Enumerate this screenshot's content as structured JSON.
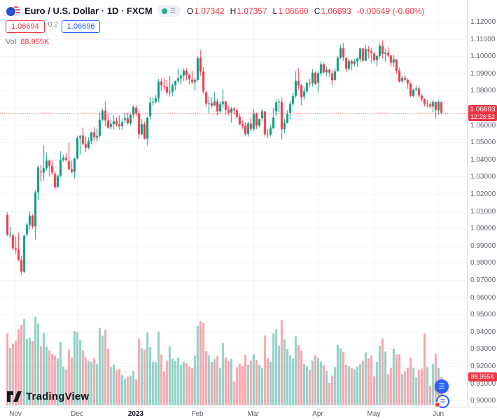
{
  "header": {
    "symbol_title": "Euro / U.S. Dollar · 1D · FXCM",
    "ohlc": {
      "o_label": "O",
      "o": "1.07342",
      "h_label": "H",
      "h": "1.07357",
      "l_label": "L",
      "l": "1.06660",
      "c_label": "C",
      "c": "1.06693",
      "change": "-0.00649 (-0.60%)"
    },
    "bid": "1.06694",
    "spread": "0.2",
    "ask": "1.06696",
    "vol_label": "Vol",
    "vol_value": "88.955K"
  },
  "price_scale": {
    "labels": [
      "1.12000",
      "1.11000",
      "1.10000",
      "1.09000",
      "1.08000",
      "1.07000",
      "1.06000",
      "1.05000",
      "1.04000",
      "1.03000",
      "1.02000",
      "1.01000",
      "1.00000",
      "0.99000",
      "0.98000",
      "0.97000",
      "0.96000",
      "0.95000",
      "0.94000",
      "0.93000",
      "0.92000",
      "0.91000",
      "0.90000"
    ],
    "last_price_label": "1.06693",
    "countdown": "12:28:52",
    "volume_badge": "88.955K"
  },
  "time_scale": {
    "labels": [
      {
        "text": "Nov",
        "index": 3
      },
      {
        "text": "Dec",
        "index": 25
      },
      {
        "text": "2023",
        "index": 46,
        "strong": true
      },
      {
        "text": "Feb",
        "index": 68
      },
      {
        "text": "Mar",
        "index": 88
      },
      {
        "text": "Apr",
        "index": 111
      },
      {
        "text": "May",
        "index": 131
      },
      {
        "text": "Jun",
        "index": 154
      }
    ]
  },
  "footer": {
    "logo_text": "TradingView"
  },
  "colors": {
    "up": "#089981",
    "down": "#f23645",
    "accent_blue": "#2962ff",
    "grid": "#f0f3fa",
    "axis_border": "#d8dce4",
    "axis_text": "#5d606b",
    "title_text": "#131722",
    "vol_up": "rgba(8,153,129,0.45)",
    "vol_down": "rgba(242,54,69,0.45)"
  },
  "chart_data": {
    "type": "candlestick",
    "title": "Euro / U.S. Dollar",
    "symbol": "EURUSD",
    "exchange": "FXCM",
    "interval": "1D",
    "x_range": "late Oct 2022 – early Jun 2023",
    "price_axis_range": [
      0.9,
      1.12
    ],
    "grid": true,
    "last_price": 1.06693,
    "volume_unit": "K",
    "candles_format": "[open, high, low, close, volumeK]",
    "candles": [
      [
        1.0079,
        1.0094,
        0.9955,
        0.9963,
        228
      ],
      [
        0.9963,
        1.001,
        0.9945,
        0.9965,
        182
      ],
      [
        0.996,
        0.9967,
        0.9872,
        0.9884,
        196
      ],
      [
        0.9884,
        0.9953,
        0.9853,
        0.9876,
        205
      ],
      [
        0.9876,
        0.9976,
        0.981,
        0.9817,
        241
      ],
      [
        0.9817,
        0.984,
        0.973,
        0.9749,
        256
      ],
      [
        0.9749,
        0.9964,
        0.9741,
        0.9957,
        274
      ],
      [
        0.9965,
        1.003,
        0.9951,
        1.002,
        211
      ],
      [
        1.002,
        1.0096,
        0.9994,
        1.0074,
        214
      ],
      [
        1.0074,
        1.0084,
        0.9998,
        1.0011,
        204
      ],
      [
        1.0011,
        1.0222,
        0.9936,
        1.0209,
        281
      ],
      [
        1.0209,
        1.0364,
        1.0163,
        1.0354,
        259
      ],
      [
        1.033,
        1.0368,
        1.0271,
        1.0325,
        188
      ],
      [
        1.0325,
        1.0481,
        1.0279,
        1.035,
        229
      ],
      [
        1.035,
        1.0438,
        1.0336,
        1.0393,
        186
      ],
      [
        1.0393,
        1.04,
        1.0301,
        1.0363,
        174
      ],
      [
        1.0363,
        1.0395,
        1.031,
        1.0324,
        163
      ],
      [
        1.0318,
        1.0328,
        1.0226,
        1.0239,
        158
      ],
      [
        1.0239,
        1.0313,
        1.0238,
        1.0305,
        149
      ],
      [
        1.0305,
        1.0448,
        1.0296,
        1.0397,
        201
      ],
      [
        1.0397,
        1.0428,
        1.0386,
        1.041,
        122
      ],
      [
        1.041,
        1.0437,
        1.0385,
        1.0397,
        114
      ],
      [
        1.039,
        1.0497,
        1.034,
        1.0343,
        176
      ],
      [
        1.0343,
        1.0394,
        1.0319,
        1.0328,
        151
      ],
      [
        1.0328,
        1.041,
        1.029,
        1.0406,
        236
      ],
      [
        1.0406,
        1.0539,
        1.04,
        1.0524,
        232
      ],
      [
        1.0524,
        1.0545,
        1.0428,
        1.0535,
        208
      ],
      [
        1.054,
        1.0585,
        1.048,
        1.049,
        174
      ],
      [
        1.049,
        1.0533,
        1.0443,
        1.0468,
        152
      ],
      [
        1.0468,
        1.0529,
        1.0458,
        1.0507,
        141
      ],
      [
        1.0507,
        1.0563,
        1.0489,
        1.0557,
        137
      ],
      [
        1.0557,
        1.0588,
        1.0505,
        1.053,
        149
      ],
      [
        1.0527,
        1.058,
        1.0505,
        1.0537,
        131
      ],
      [
        1.0537,
        1.0673,
        1.0528,
        1.0631,
        246
      ],
      [
        1.0631,
        1.0695,
        1.0622,
        1.0683,
        221
      ],
      [
        1.0683,
        1.0737,
        1.0594,
        1.0627,
        239
      ],
      [
        1.0627,
        1.0661,
        1.0577,
        1.0585,
        179
      ],
      [
        1.059,
        1.063,
        1.0575,
        1.0606,
        121
      ],
      [
        1.0606,
        1.0658,
        1.0574,
        1.0622,
        129
      ],
      [
        1.0622,
        1.0644,
        1.0589,
        1.0604,
        111
      ],
      [
        1.0604,
        1.0657,
        1.0572,
        1.0594,
        116
      ],
      [
        1.0594,
        1.0636,
        1.0572,
        1.0616,
        96
      ],
      [
        1.063,
        1.067,
        1.061,
        1.064,
        84
      ],
      [
        1.064,
        1.0672,
        1.0603,
        1.061,
        91
      ],
      [
        1.061,
        1.0669,
        1.0598,
        1.0661,
        94
      ],
      [
        1.0661,
        1.0714,
        1.0639,
        1.0705,
        109
      ],
      [
        1.07,
        1.0713,
        1.065,
        1.0668,
        82
      ],
      [
        1.0668,
        1.0683,
        1.0519,
        1.0546,
        212
      ],
      [
        1.0546,
        1.0635,
        1.0542,
        1.0605,
        181
      ],
      [
        1.0605,
        1.0621,
        1.0515,
        1.0521,
        176
      ],
      [
        1.0521,
        1.0648,
        1.0482,
        1.0644,
        231
      ],
      [
        1.065,
        1.0761,
        1.0634,
        1.073,
        184
      ],
      [
        1.073,
        1.076,
        1.0711,
        1.0734,
        139
      ],
      [
        1.0734,
        1.0776,
        1.0724,
        1.0756,
        136
      ],
      [
        1.0756,
        1.0868,
        1.0729,
        1.0852,
        234
      ],
      [
        1.0852,
        1.0869,
        1.0797,
        1.083,
        161
      ],
      [
        1.0825,
        1.0874,
        1.0802,
        1.0822,
        108
      ],
      [
        1.0822,
        1.0861,
        1.0775,
        1.0788,
        142
      ],
      [
        1.0788,
        1.0887,
        1.0766,
        1.0793,
        187
      ],
      [
        1.0793,
        1.084,
        1.0767,
        1.0832,
        148
      ],
      [
        1.0832,
        1.0859,
        1.0802,
        1.0856,
        141
      ],
      [
        1.0856,
        1.0927,
        1.0848,
        1.087,
        152
      ],
      [
        1.087,
        1.0898,
        1.0835,
        1.0886,
        128
      ],
      [
        1.0886,
        1.0929,
        1.0855,
        1.0916,
        139
      ],
      [
        1.0916,
        1.093,
        1.0858,
        1.0891,
        134
      ],
      [
        1.0891,
        1.09,
        1.0838,
        1.0868,
        123
      ],
      [
        1.0865,
        1.0914,
        1.0838,
        1.0849,
        119
      ],
      [
        1.0849,
        1.0875,
        1.0802,
        1.0863,
        158
      ],
      [
        1.0863,
        1.1001,
        1.0853,
        1.0989,
        252
      ],
      [
        1.0989,
        1.1033,
        1.0885,
        1.091,
        268
      ],
      [
        1.091,
        1.0936,
        1.0781,
        1.0795,
        262
      ],
      [
        1.079,
        1.0798,
        1.0709,
        1.0725,
        172
      ],
      [
        1.0725,
        1.0766,
        1.0669,
        1.0727,
        159
      ],
      [
        1.0727,
        1.0759,
        1.0699,
        1.0713,
        138
      ],
      [
        1.0713,
        1.0791,
        1.0711,
        1.0738,
        147
      ],
      [
        1.0738,
        1.0752,
        1.0656,
        1.0679,
        156
      ],
      [
        1.068,
        1.0737,
        1.0668,
        1.0722,
        118
      ],
      [
        1.0722,
        1.0805,
        1.07,
        1.0736,
        198
      ],
      [
        1.0736,
        1.0743,
        1.066,
        1.0689,
        151
      ],
      [
        1.0689,
        1.071,
        1.0655,
        1.0672,
        139
      ],
      [
        1.0672,
        1.0706,
        1.0613,
        1.0695,
        148
      ],
      [
        1.0695,
        1.0705,
        1.0662,
        1.0686,
        76
      ],
      [
        1.0686,
        1.0697,
        1.0636,
        1.0648,
        121
      ],
      [
        1.0648,
        1.0663,
        1.0598,
        1.0605,
        132
      ],
      [
        1.0605,
        1.0625,
        1.0577,
        1.0595,
        124
      ],
      [
        1.0595,
        1.0617,
        1.0536,
        1.0546,
        161
      ],
      [
        1.055,
        1.062,
        1.0533,
        1.0609,
        129
      ],
      [
        1.0609,
        1.0645,
        1.0565,
        1.0577,
        141
      ],
      [
        1.0577,
        1.0691,
        1.0565,
        1.0666,
        162
      ],
      [
        1.0666,
        1.0673,
        1.0577,
        1.0597,
        144
      ],
      [
        1.0597,
        1.0638,
        1.0589,
        1.0635,
        128
      ],
      [
        1.064,
        1.0694,
        1.0624,
        1.0679,
        119
      ],
      [
        1.0679,
        1.0681,
        1.0532,
        1.0547,
        221
      ],
      [
        1.0547,
        1.0578,
        1.0524,
        1.0545,
        149
      ],
      [
        1.0545,
        1.0601,
        1.0533,
        1.0582,
        138
      ],
      [
        1.0582,
        1.0701,
        1.0575,
        1.0643,
        228
      ],
      [
        1.068,
        1.0749,
        1.0651,
        1.0731,
        242
      ],
      [
        1.0731,
        1.075,
        1.0674,
        1.0734,
        189
      ],
      [
        1.0734,
        1.076,
        1.0516,
        1.0577,
        271
      ],
      [
        1.0577,
        1.0635,
        1.0551,
        1.0611,
        209
      ],
      [
        1.0611,
        1.0686,
        1.0611,
        1.0665,
        178
      ],
      [
        1.067,
        1.0738,
        1.0632,
        1.0723,
        159
      ],
      [
        1.0723,
        1.0789,
        1.0709,
        1.0769,
        148
      ],
      [
        1.0769,
        1.0912,
        1.0756,
        1.0856,
        219
      ],
      [
        1.0856,
        1.093,
        1.0805,
        1.083,
        191
      ],
      [
        1.083,
        1.084,
        1.0714,
        1.076,
        174
      ],
      [
        1.0765,
        1.0816,
        1.0745,
        1.0796,
        131
      ],
      [
        1.0796,
        1.0849,
        1.0783,
        1.0845,
        124
      ],
      [
        1.0845,
        1.0868,
        1.0823,
        1.0843,
        113
      ],
      [
        1.0843,
        1.0926,
        1.0824,
        1.0904,
        142
      ],
      [
        1.0904,
        1.0913,
        1.0831,
        1.0839,
        159
      ],
      [
        1.0845,
        1.0913,
        1.0788,
        1.0901,
        151
      ],
      [
        1.0901,
        1.0973,
        1.0885,
        1.0953,
        139
      ],
      [
        1.0953,
        1.0963,
        1.0899,
        1.0906,
        128
      ],
      [
        1.0906,
        1.0938,
        1.0885,
        1.0921,
        109
      ],
      [
        1.0921,
        1.0926,
        1.088,
        1.0904,
        71
      ],
      [
        1.09,
        1.0917,
        1.0831,
        1.0861,
        94
      ],
      [
        1.0861,
        1.0929,
        1.0859,
        1.0912,
        121
      ],
      [
        1.0912,
        1.1,
        1.0911,
        1.099,
        192
      ],
      [
        1.099,
        1.1068,
        1.0983,
        1.1047,
        181
      ],
      [
        1.1047,
        1.1076,
        1.0973,
        1.0993,
        169
      ],
      [
        1.099,
        1.0993,
        1.0909,
        1.0927,
        129
      ],
      [
        1.0927,
        1.0983,
        1.0917,
        1.0972,
        124
      ],
      [
        1.0972,
        1.0981,
        1.0918,
        1.0955,
        118
      ],
      [
        1.0955,
        1.0985,
        1.0938,
        1.097,
        114
      ],
      [
        1.097,
        1.0994,
        1.0937,
        1.0986,
        122
      ],
      [
        1.0982,
        1.1049,
        1.0963,
        1.1045,
        131
      ],
      [
        1.1045,
        1.1051,
        1.0964,
        1.0974,
        141
      ],
      [
        1.0974,
        1.1065,
        1.0972,
        1.104,
        168
      ],
      [
        1.104,
        1.1058,
        1.0987,
        1.1028,
        149
      ],
      [
        1.1028,
        1.1046,
        1.0962,
        1.1019,
        158
      ],
      [
        1.1015,
        1.1023,
        1.0964,
        1.0977,
        92
      ],
      [
        1.0977,
        1.1007,
        1.0942,
        1.1001,
        138
      ],
      [
        1.1001,
        1.1073,
        1.0987,
        1.106,
        189
      ],
      [
        1.106,
        1.1091,
        1.0987,
        1.1013,
        212
      ],
      [
        1.1013,
        1.1041,
        1.0967,
        1.102,
        171
      ],
      [
        1.102,
        1.1053,
        1.0996,
        1.1004,
        98
      ],
      [
        1.1004,
        1.1006,
        1.0941,
        1.0963,
        119
      ],
      [
        1.0963,
        1.1007,
        1.0937,
        1.0981,
        179
      ],
      [
        1.0981,
        1.0982,
        1.0899,
        1.0916,
        161
      ],
      [
        1.0916,
        1.0932,
        1.0848,
        1.085,
        162
      ],
      [
        1.0855,
        1.0887,
        1.0845,
        1.0874,
        99
      ],
      [
        1.0874,
        1.089,
        1.0852,
        1.0863,
        108
      ],
      [
        1.0863,
        1.0868,
        1.081,
        1.084,
        119
      ],
      [
        1.084,
        1.0848,
        1.0761,
        1.0769,
        151
      ],
      [
        1.0769,
        1.0812,
        1.0763,
        1.0805,
        118
      ],
      [
        1.0805,
        1.0831,
        1.0797,
        1.0812,
        89
      ],
      [
        1.0812,
        1.0827,
        1.0759,
        1.0771,
        112
      ],
      [
        1.0771,
        1.078,
        1.0735,
        1.075,
        116
      ],
      [
        1.075,
        1.0756,
        1.0708,
        1.0724,
        228
      ],
      [
        1.0724,
        1.0746,
        1.0701,
        1.0724,
        121
      ],
      [
        1.072,
        1.0737,
        1.0697,
        1.0708,
        62
      ],
      [
        1.0708,
        1.0744,
        1.0674,
        1.0733,
        131
      ],
      [
        1.0733,
        1.0738,
        1.0635,
        1.0687,
        164
      ],
      [
        1.0687,
        1.0743,
        1.0661,
        1.0734,
        118
      ],
      [
        1.07342,
        1.07357,
        1.0666,
        1.06693,
        88.955
      ]
    ]
  }
}
